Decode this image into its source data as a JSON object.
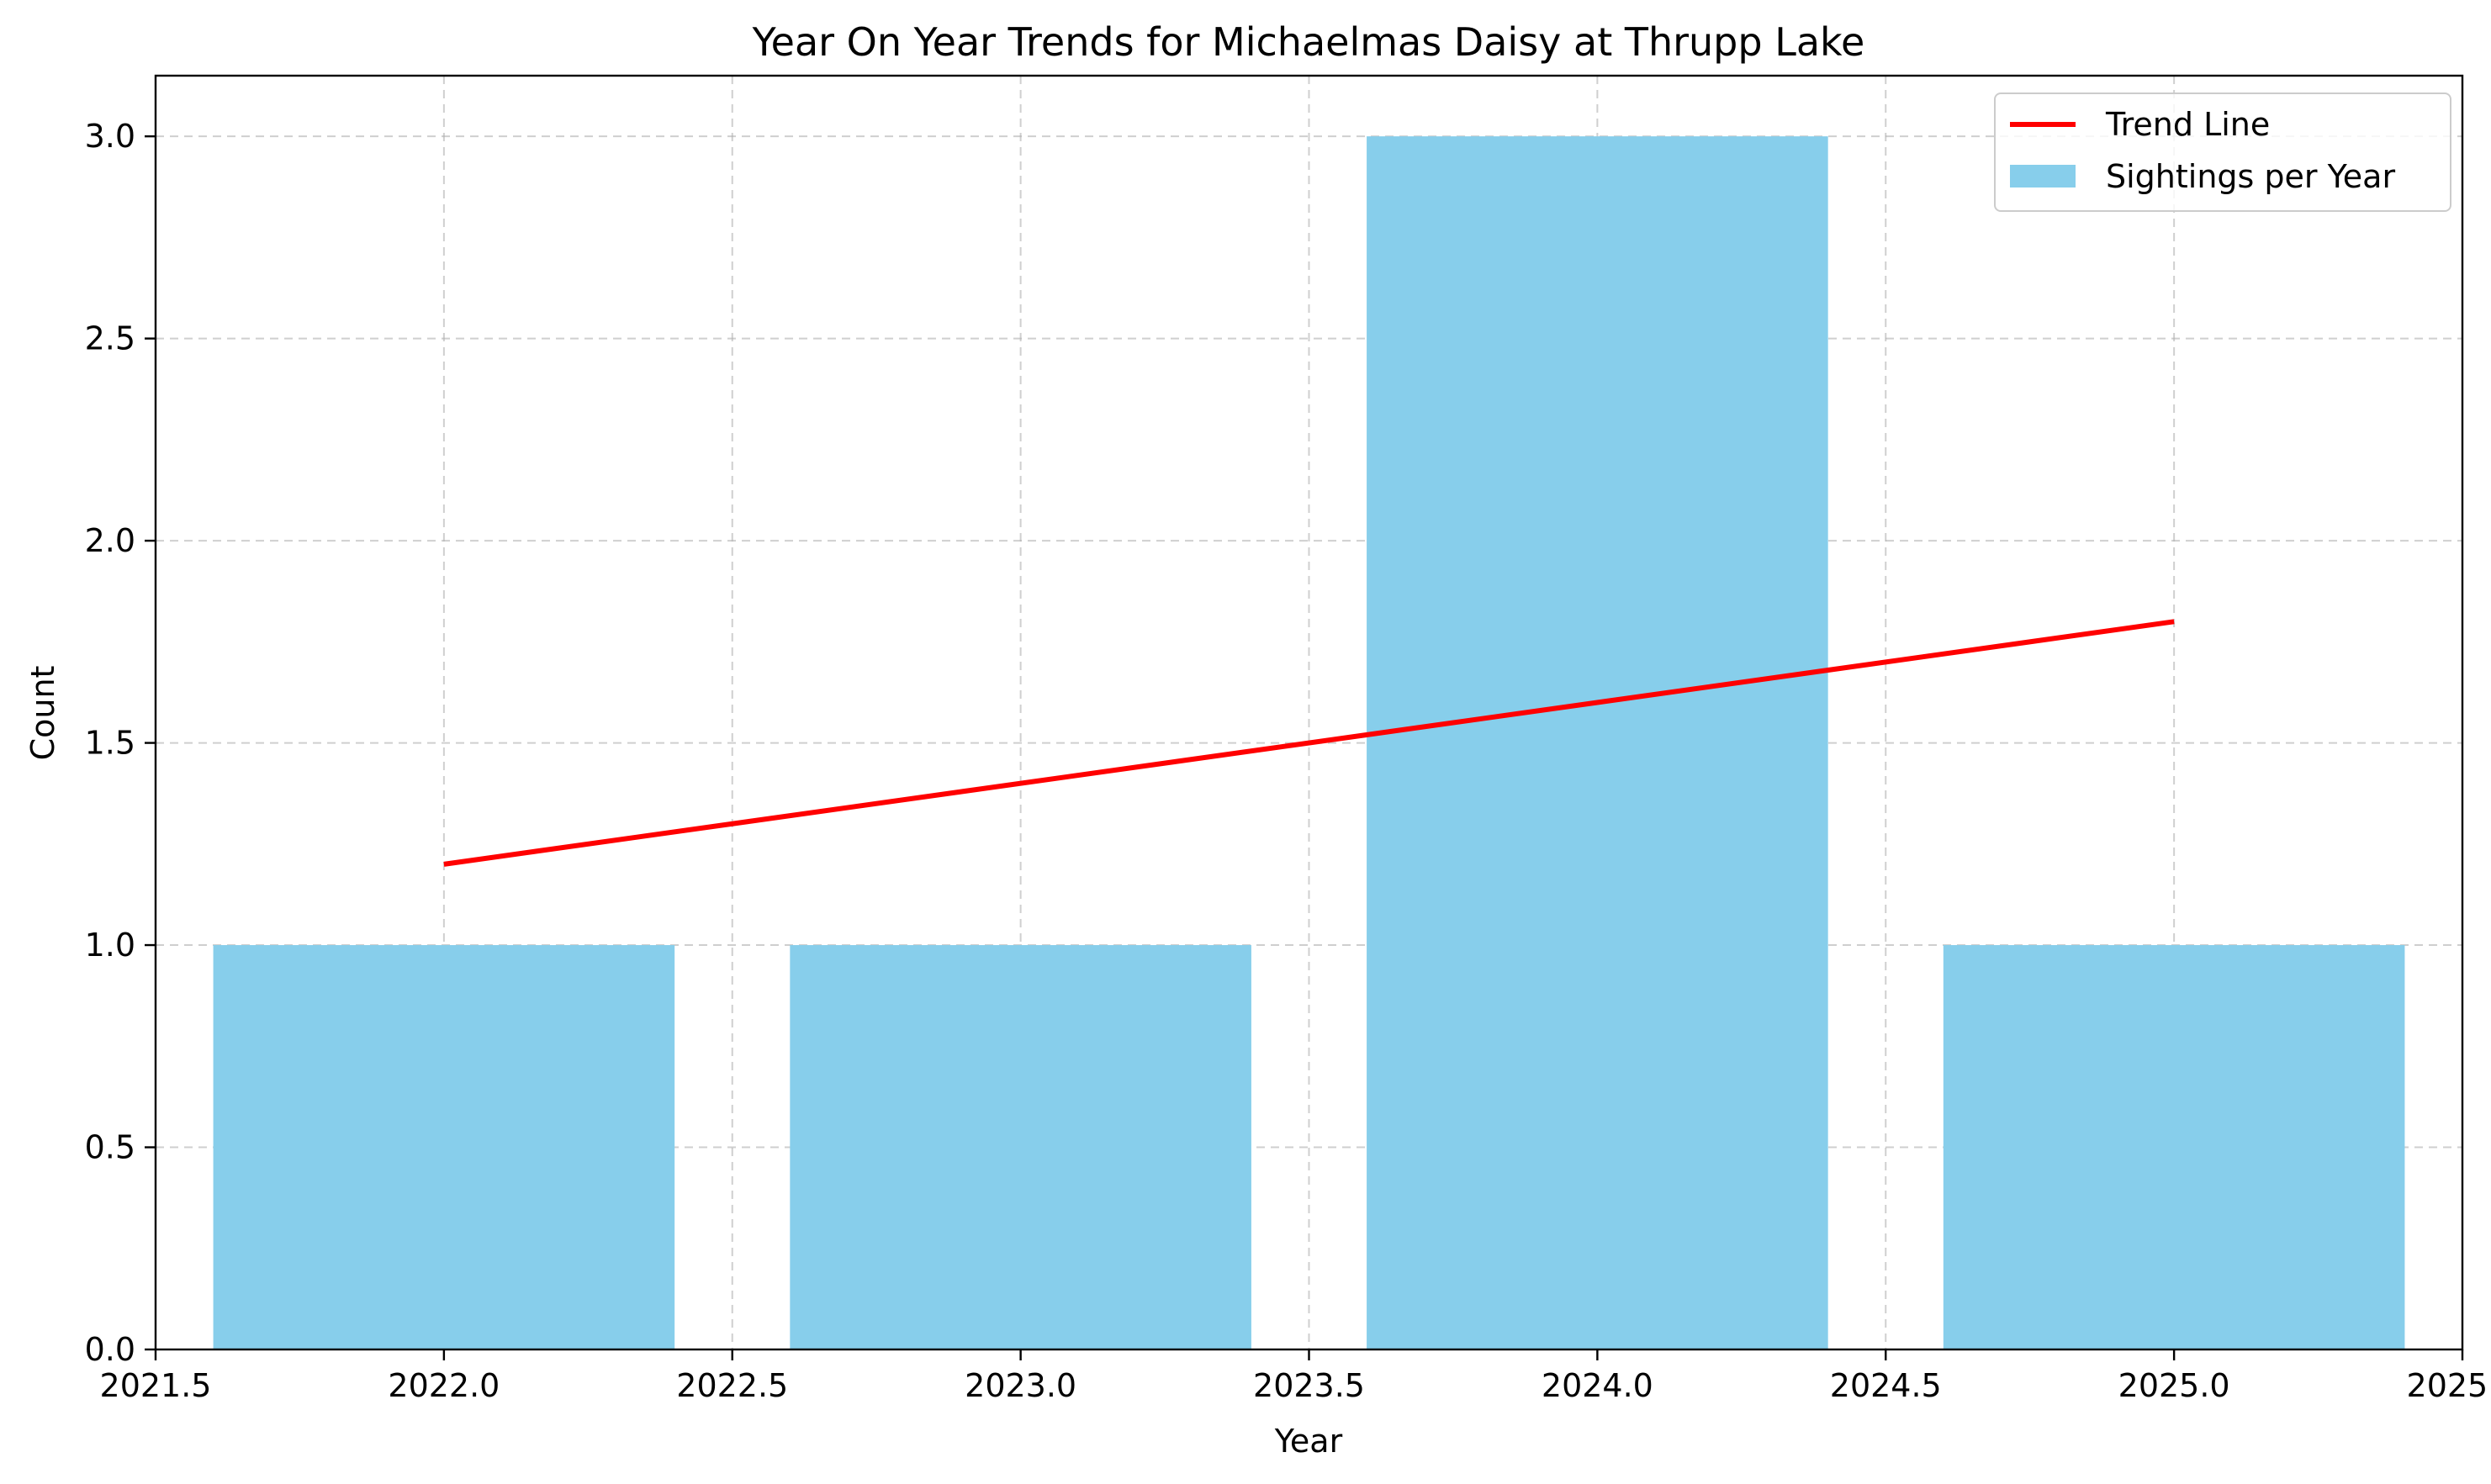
{
  "chart_data": {
    "type": "bar",
    "title": "Year On Year Trends for Michaelmas Daisy at Thrupp Lake",
    "xlabel": "Year",
    "ylabel": "Count",
    "xlim": [
      2021.5,
      2025.5
    ],
    "ylim": [
      0,
      3.15
    ],
    "x_ticks": [
      "2021.5",
      "2022.0",
      "2022.5",
      "2023.0",
      "2023.5",
      "2024.0",
      "2024.5",
      "2025.0",
      "2025.5"
    ],
    "y_ticks": [
      "0.0",
      "0.5",
      "1.0",
      "1.5",
      "2.0",
      "2.5",
      "3.0"
    ],
    "grid": true,
    "legend_position": "top-right",
    "series": [
      {
        "name": "Sightings per Year",
        "kind": "bar",
        "color": "#87ceeb",
        "x": [
          2022,
          2023,
          2024,
          2025
        ],
        "values": [
          1,
          1,
          3,
          1
        ],
        "bar_width": 0.8
      },
      {
        "name": "Trend Line",
        "kind": "line",
        "color": "#ff0000",
        "x": [
          2022,
          2025
        ],
        "values": [
          1.2,
          1.8
        ]
      }
    ],
    "legend": [
      "Trend Line",
      "Sightings per Year"
    ]
  }
}
